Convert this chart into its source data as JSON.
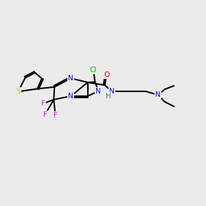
{
  "background_color": "#ebebeb",
  "bond_color": "#000000",
  "atom_colors": {
    "N": "#0000ee",
    "S": "#cccc00",
    "O": "#ff0000",
    "F": "#ee00ee",
    "Cl": "#00bb00",
    "H": "#008888",
    "C": "#000000"
  },
  "figsize": [
    3.0,
    3.0
  ],
  "dpi": 100
}
